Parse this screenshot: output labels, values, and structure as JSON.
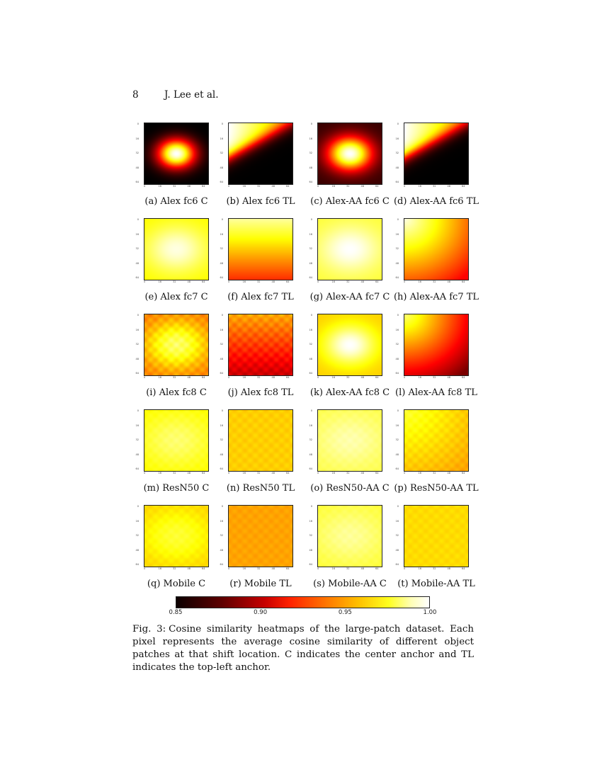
{
  "header": {
    "page_number": "8",
    "authors": "J. Lee et al."
  },
  "panels": [
    {
      "label": "(a) Alex fc6 C",
      "pattern": "center",
      "lo": 0.0,
      "hi": 1.0,
      "spread": 0.55
    },
    {
      "label": "(b) Alex fc6 TL",
      "pattern": "topleft-sharp",
      "lo": 0.0,
      "hi": 1.0
    },
    {
      "label": "(c) Alex-AA fc6 C",
      "pattern": "center",
      "lo": 0.08,
      "hi": 1.0,
      "spread": 0.65
    },
    {
      "label": "(d) Alex-AA fc6 TL",
      "pattern": "topleft-sharp",
      "lo": 0.0,
      "hi": 1.0
    },
    {
      "label": "(e) Alex fc7 C",
      "pattern": "center",
      "lo": 0.74,
      "hi": 0.97,
      "spread": 0.9
    },
    {
      "label": "(f) Alex fc7 TL",
      "pattern": "vertical",
      "lo": 0.42,
      "hi": 0.9
    },
    {
      "label": "(g) Alex-AA fc7 C",
      "pattern": "center",
      "lo": 0.8,
      "hi": 1.0,
      "spread": 0.9
    },
    {
      "label": "(h) Alex-AA fc7 TL",
      "pattern": "topleft-soft",
      "lo": 0.38,
      "hi": 0.97
    },
    {
      "label": "(i) Alex fc8 C",
      "pattern": "center-grid",
      "lo": 0.55,
      "hi": 0.85,
      "spread": 0.9
    },
    {
      "label": "(j) Alex fc8 TL",
      "pattern": "vertical-grid",
      "lo": 0.28,
      "hi": 0.62
    },
    {
      "label": "(k) Alex-AA fc8 C",
      "pattern": "center",
      "lo": 0.68,
      "hi": 1.0,
      "spread": 0.75
    },
    {
      "label": "(l) Alex-AA fc8 TL",
      "pattern": "topleft-soft",
      "lo": 0.18,
      "hi": 0.86
    },
    {
      "label": "(m) ResN50 C",
      "pattern": "center-grid",
      "lo": 0.74,
      "hi": 0.86,
      "spread": 1.0
    },
    {
      "label": "(n) ResN50 TL",
      "pattern": "grid",
      "lo": 0.6,
      "hi": 0.76
    },
    {
      "label": "(o) ResN50-AA C",
      "pattern": "center-grid",
      "lo": 0.82,
      "hi": 0.92,
      "spread": 1.0
    },
    {
      "label": "(p) ResN50-AA TL",
      "pattern": "topleft-grid",
      "lo": 0.62,
      "hi": 0.8
    },
    {
      "label": "(q) Mobile C",
      "pattern": "center-grid",
      "lo": 0.68,
      "hi": 0.8,
      "spread": 1.0
    },
    {
      "label": "(r) Mobile TL",
      "pattern": "grid",
      "lo": 0.55,
      "hi": 0.68
    },
    {
      "label": "(s) Mobile-AA C",
      "pattern": "center-grid",
      "lo": 0.8,
      "hi": 0.9,
      "spread": 1.0
    },
    {
      "label": "(t) Mobile-AA TL",
      "pattern": "grid",
      "lo": 0.64,
      "hi": 0.76
    }
  ],
  "axis_ticks": [
    "0",
    "16",
    "32",
    "48",
    "64"
  ],
  "colorbar": {
    "ticks": [
      "0.85",
      "0.90",
      "0.95",
      "1.00"
    ],
    "min": 0.85,
    "max": 1.0,
    "colormap": "hot"
  },
  "caption": {
    "label": "Fig. 3:",
    "text": "Cosine similarity heatmaps of the large-patch dataset. Each pixel represents the average cosine similarity of different object patches at that shift location. C indicates the center anchor and TL indicates the top-left anchor."
  }
}
